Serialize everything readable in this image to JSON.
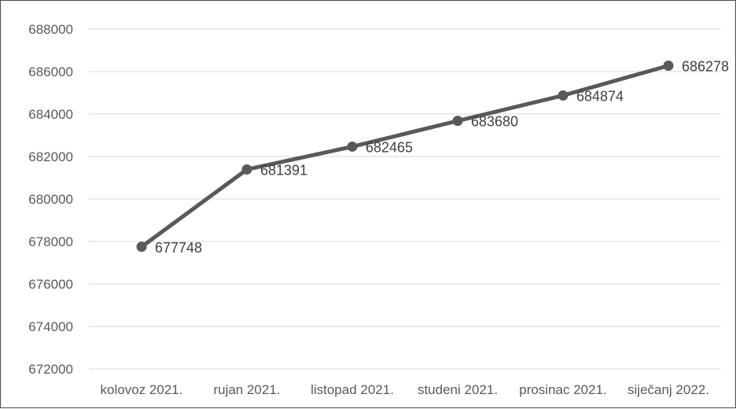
{
  "chart_data": {
    "type": "line",
    "categories": [
      "kolovoz 2021.",
      "rujan 2021.",
      "listopad 2021.",
      "studeni 2021.",
      "prosinac 2021.",
      "siječanj 2022."
    ],
    "series": [
      {
        "values": [
          677748,
          681391,
          682465,
          683680,
          684874,
          686278
        ]
      }
    ],
    "data_labels": [
      "677748",
      "681391",
      "682465",
      "683680",
      "684874",
      "686278"
    ],
    "y_ticks": [
      "672000",
      "674000",
      "676000",
      "678000",
      "680000",
      "682000",
      "684000",
      "686000",
      "688000"
    ],
    "ylim": [
      672000,
      688000
    ],
    "grid": true,
    "line_color": "#595959",
    "grid_color": "#d9d9d9"
  }
}
